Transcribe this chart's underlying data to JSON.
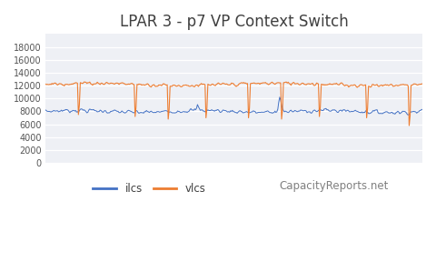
{
  "title": "LPAR 3 - p7 VP Context Switch",
  "title_fontsize": 12,
  "title_color": "#404040",
  "ylim": [
    0,
    20000
  ],
  "yticks": [
    0,
    2000,
    4000,
    6000,
    8000,
    10000,
    12000,
    14000,
    16000,
    18000
  ],
  "ilcs_color": "#4472C4",
  "vlcs_color": "#ED7D31",
  "legend_label_ilcs": "ilcs",
  "legend_label_vlcs": "vlcs",
  "watermark": "CapacityReports.net",
  "watermark_color": "#808080",
  "plot_bg_color": "#EEF0F5",
  "fig_bg_color": "#FFFFFF",
  "grid_color": "#FFFFFF",
  "n_points": 400
}
